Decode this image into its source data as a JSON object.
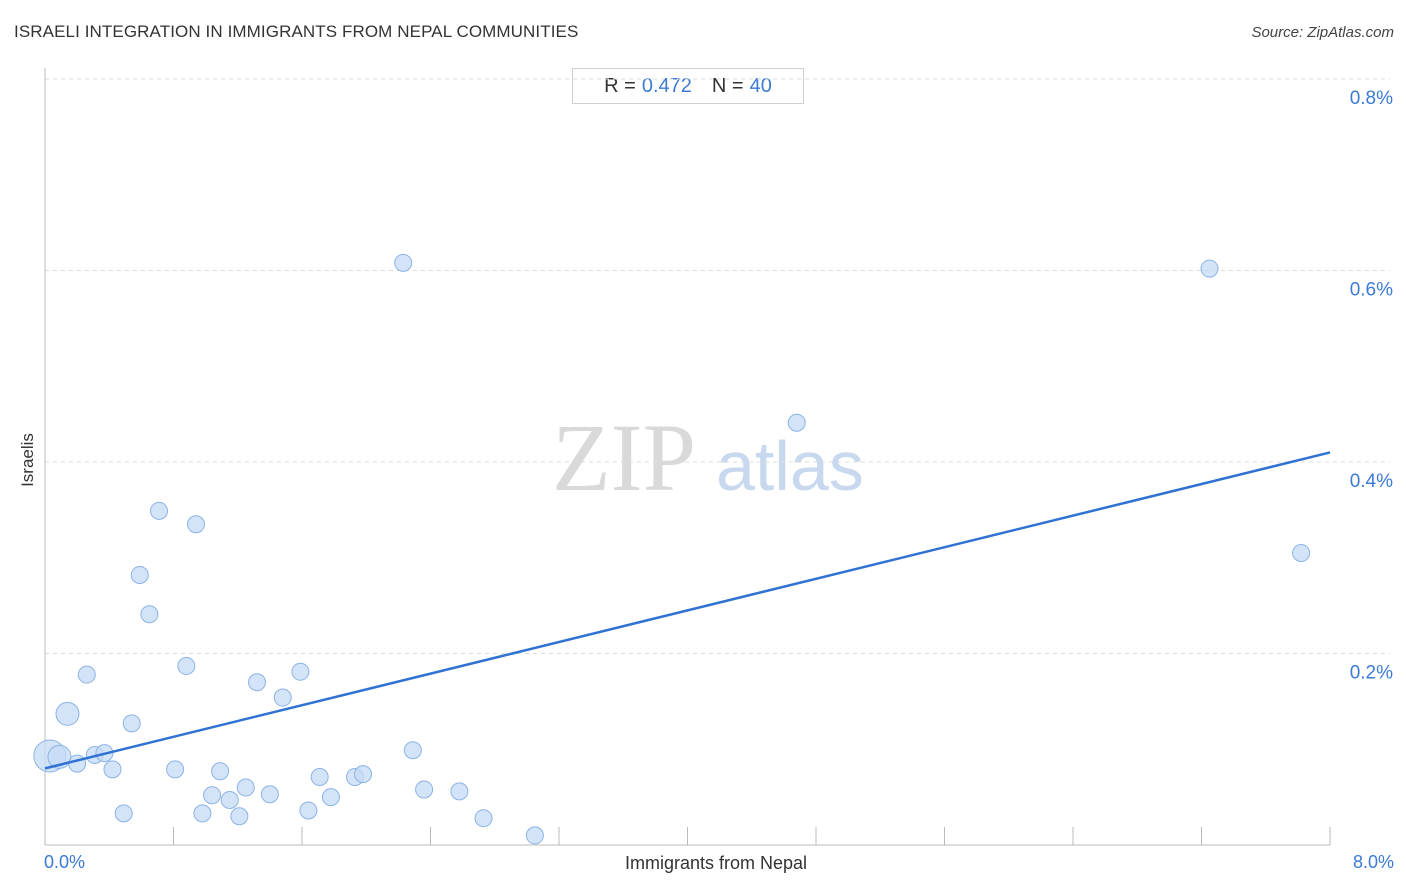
{
  "header": {
    "title": "ISRAELI INTEGRATION IN IMMIGRANTS FROM NEPAL COMMUNITIES",
    "source": "Source: ZipAtlas.com"
  },
  "stats": {
    "r_label": "R =",
    "r_value": "0.472",
    "n_label": "N =",
    "n_value": "40"
  },
  "watermark": {
    "zip": "ZIP",
    "atlas": "atlas"
  },
  "colors": {
    "accent": "#3b7ad6",
    "point_fill": "#c6dbf5",
    "point_stroke": "#8bb3e6",
    "trend": "#2f72d4",
    "grid": "#dddddd"
  },
  "chart_data": {
    "type": "scatter",
    "title": "ISRAELI INTEGRATION IN IMMIGRANTS FROM NEPAL COMMUNITIES",
    "xlabel": "Immigrants from Nepal",
    "ylabel": "Israelis",
    "xlim": [
      0,
      8
    ],
    "ylim": [
      0,
      0.8
    ],
    "x_tick_labels": [
      "0.0%",
      "8.0%"
    ],
    "y_ticks": [
      0.2,
      0.4,
      0.6,
      0.8
    ],
    "y_tick_labels": [
      "0.2%",
      "0.4%",
      "0.6%",
      "0.8%"
    ],
    "grid": true,
    "trend_line": {
      "x": [
        0,
        8
      ],
      "y": [
        0.08,
        0.41
      ]
    },
    "points": [
      {
        "x": 0.03,
        "y": 0.093,
        "size": "large"
      },
      {
        "x": 0.09,
        "y": 0.092,
        "size": "medium"
      },
      {
        "x": 0.14,
        "y": 0.137,
        "size": "medium"
      },
      {
        "x": 0.2,
        "y": 0.085,
        "size": "small"
      },
      {
        "x": 0.26,
        "y": 0.178,
        "size": "small"
      },
      {
        "x": 0.31,
        "y": 0.094,
        "size": "small"
      },
      {
        "x": 0.37,
        "y": 0.096,
        "size": "small"
      },
      {
        "x": 0.42,
        "y": 0.079,
        "size": "small"
      },
      {
        "x": 0.49,
        "y": 0.033,
        "size": "small"
      },
      {
        "x": 0.54,
        "y": 0.127,
        "size": "small"
      },
      {
        "x": 0.59,
        "y": 0.282,
        "size": "small"
      },
      {
        "x": 0.65,
        "y": 0.241,
        "size": "small"
      },
      {
        "x": 0.71,
        "y": 0.349,
        "size": "small"
      },
      {
        "x": 0.81,
        "y": 0.079,
        "size": "small"
      },
      {
        "x": 0.88,
        "y": 0.187,
        "size": "small"
      },
      {
        "x": 0.94,
        "y": 0.335,
        "size": "small"
      },
      {
        "x": 0.98,
        "y": 0.033,
        "size": "small"
      },
      {
        "x": 1.04,
        "y": 0.052,
        "size": "small"
      },
      {
        "x": 1.09,
        "y": 0.077,
        "size": "small"
      },
      {
        "x": 1.15,
        "y": 0.047,
        "size": "small"
      },
      {
        "x": 1.21,
        "y": 0.03,
        "size": "small"
      },
      {
        "x": 1.25,
        "y": 0.06,
        "size": "small"
      },
      {
        "x": 1.32,
        "y": 0.17,
        "size": "small"
      },
      {
        "x": 1.4,
        "y": 0.053,
        "size": "small"
      },
      {
        "x": 1.48,
        "y": 0.154,
        "size": "small"
      },
      {
        "x": 1.59,
        "y": 0.181,
        "size": "small"
      },
      {
        "x": 1.64,
        "y": 0.036,
        "size": "small"
      },
      {
        "x": 1.71,
        "y": 0.071,
        "size": "small"
      },
      {
        "x": 1.78,
        "y": 0.05,
        "size": "small"
      },
      {
        "x": 1.93,
        "y": 0.071,
        "size": "small"
      },
      {
        "x": 1.98,
        "y": 0.074,
        "size": "small"
      },
      {
        "x": 2.23,
        "y": 0.608,
        "size": "small"
      },
      {
        "x": 2.29,
        "y": 0.099,
        "size": "small"
      },
      {
        "x": 2.36,
        "y": 0.058,
        "size": "small"
      },
      {
        "x": 2.58,
        "y": 0.056,
        "size": "small"
      },
      {
        "x": 2.73,
        "y": 0.028,
        "size": "small"
      },
      {
        "x": 3.05,
        "y": 0.01,
        "size": "small"
      },
      {
        "x": 4.68,
        "y": 0.441,
        "size": "small"
      },
      {
        "x": 7.25,
        "y": 0.602,
        "size": "small"
      },
      {
        "x": 7.82,
        "y": 0.305,
        "size": "small"
      }
    ]
  }
}
